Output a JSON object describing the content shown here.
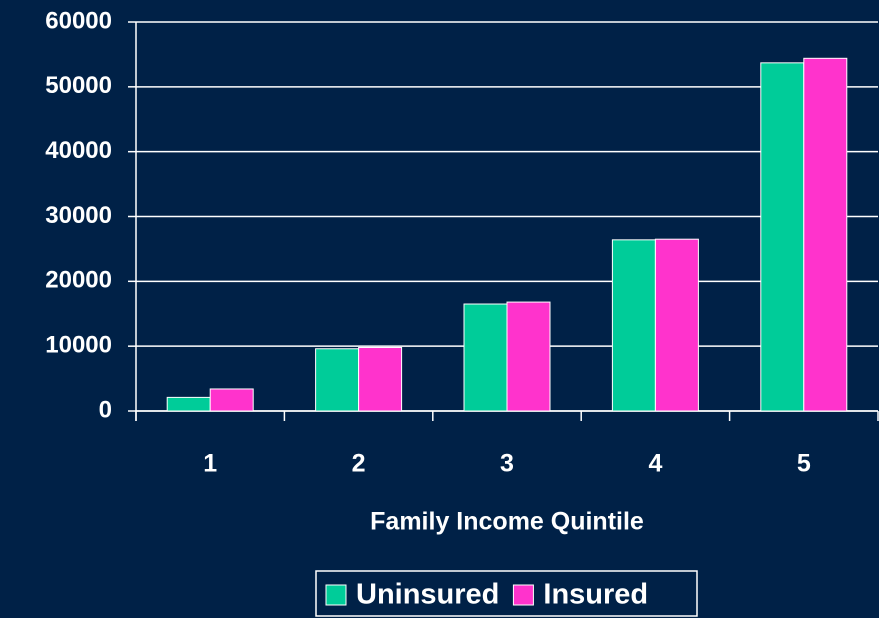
{
  "chart_data": {
    "type": "bar",
    "x_label": "Family Income Quintile",
    "categories": [
      "1",
      "2",
      "3",
      "4",
      "5"
    ],
    "series": [
      {
        "name": "Uninsured",
        "color": "#00cc99",
        "values": [
          2100,
          9600,
          16500,
          26400,
          53700
        ]
      },
      {
        "name": "Insured",
        "color": "#ff33cc",
        "values": [
          3400,
          9800,
          16800,
          26500,
          54400
        ]
      }
    ],
    "ylim": [
      0,
      60000
    ],
    "yticks": [
      0,
      10000,
      20000,
      30000,
      40000,
      50000,
      60000
    ],
    "grid": true,
    "legend": "bottom"
  }
}
